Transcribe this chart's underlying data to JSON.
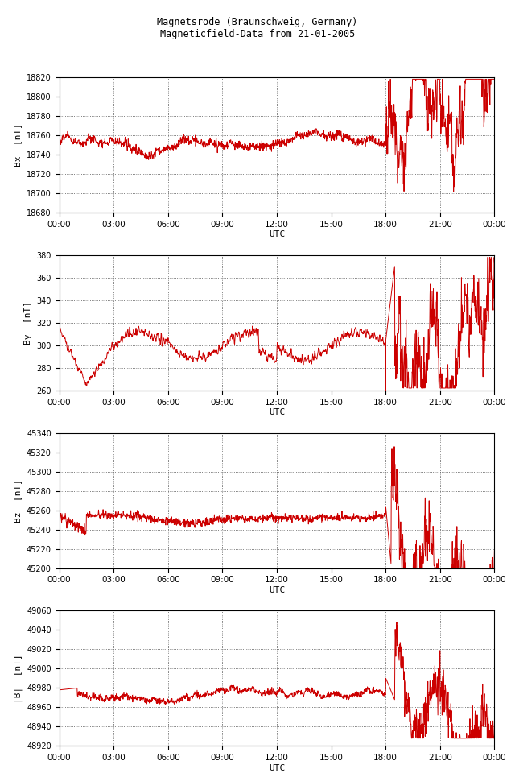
{
  "title_line1": "Magnetsrode (Braunschweig, Germany)",
  "title_line2": "Magneticfield-Data from 21-01-2005",
  "panels": [
    {
      "ylabel": "Bx  [nT]",
      "ylim": [
        18680,
        18820
      ],
      "yticks": [
        18680,
        18700,
        18720,
        18740,
        18760,
        18780,
        18800,
        18820
      ]
    },
    {
      "ylabel": "By  [nT]",
      "ylim": [
        260,
        380
      ],
      "yticks": [
        260,
        280,
        300,
        320,
        340,
        360,
        380
      ]
    },
    {
      "ylabel": "Bz  [nT]",
      "ylim": [
        45200,
        45340
      ],
      "yticks": [
        45200,
        45220,
        45240,
        45260,
        45280,
        45300,
        45320,
        45340
      ]
    },
    {
      "ylabel": "|B|  [nT]",
      "ylim": [
        48920,
        49060
      ],
      "yticks": [
        48920,
        48940,
        48960,
        48980,
        49000,
        49020,
        49040,
        49060
      ]
    }
  ],
  "xlabel": "UTC",
  "xticks": [
    0,
    3,
    6,
    9,
    12,
    15,
    18,
    21,
    24
  ],
  "xticklabels": [
    "00:00",
    "03:00",
    "06:00",
    "09:00",
    "12:00",
    "15:00",
    "18:00",
    "21:00",
    "00:00"
  ],
  "line_color": "#cc0000",
  "grid_color": "#555555",
  "bg_color": "#ffffff",
  "fig_bg_color": "#ffffff"
}
